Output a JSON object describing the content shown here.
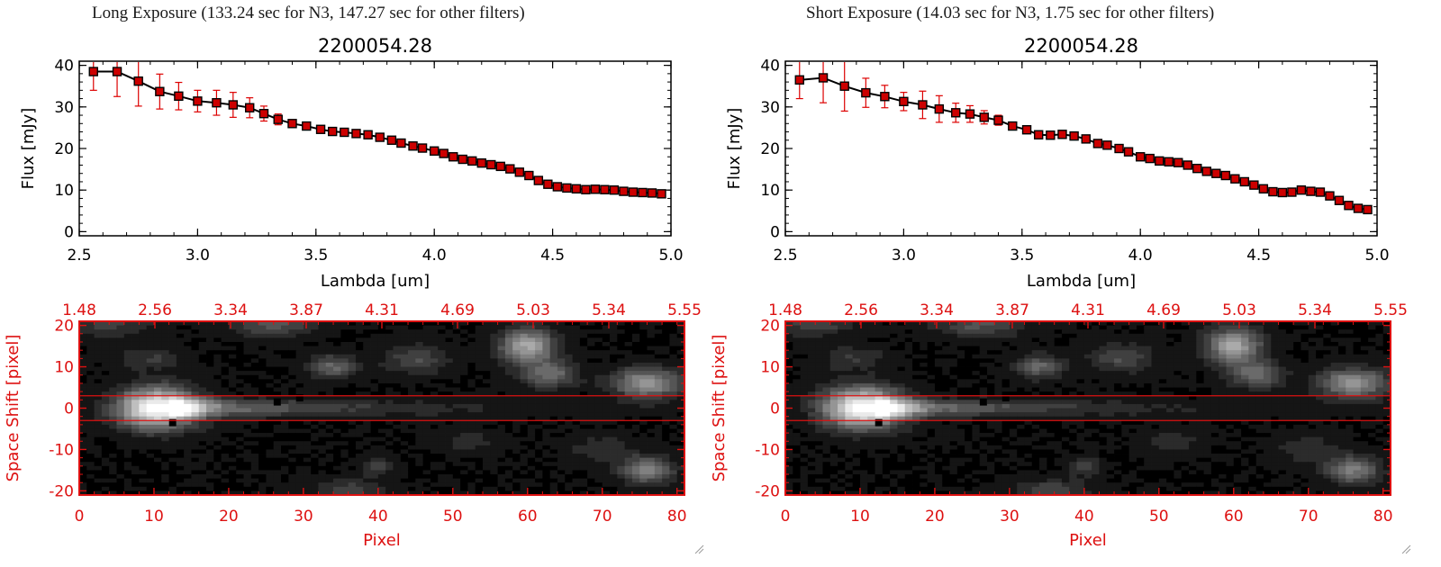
{
  "panels": [
    {
      "caption": "Long Exposure (133.24 sec for N3, 147.27 sec for other filters)"
    },
    {
      "caption": "Short Exposure (14.03 sec for N3, 1.75 sec for other filters)"
    }
  ],
  "chart_data": [
    {
      "type": "scatter",
      "title": "2200054.28",
      "xlabel": "Lambda [um]",
      "ylabel": "Flux [mJy]",
      "xlim": [
        2.5,
        5.0
      ],
      "ylim": [
        -1,
        41
      ],
      "xticks": [
        "2.5",
        "3.0",
        "3.5",
        "4.0",
        "4.5",
        "5.0"
      ],
      "yticks": [
        "0",
        "10",
        "20",
        "30",
        "40"
      ],
      "marker_color": "#cc0000",
      "line_color": "#000000",
      "errorbar_color": "#dd0000",
      "series": [
        {
          "x": [
            2.56,
            2.66,
            2.75,
            2.84,
            2.92,
            3.0,
            3.08,
            3.15,
            3.22,
            3.28,
            3.34,
            3.4,
            3.46,
            3.52,
            3.57,
            3.62,
            3.67,
            3.72,
            3.77,
            3.82,
            3.86,
            3.91,
            3.95,
            4.0,
            4.04,
            4.08,
            4.12,
            4.16,
            4.2,
            4.24,
            4.28,
            4.32,
            4.36,
            4.4,
            4.44,
            4.48,
            4.52,
            4.56,
            4.6,
            4.64,
            4.68,
            4.72,
            4.76,
            4.8,
            4.84,
            4.88,
            4.92,
            4.96
          ],
          "y": [
            38.5,
            38.5,
            36.2,
            33.7,
            32.6,
            31.4,
            31.0,
            30.5,
            29.8,
            28.4,
            27.0,
            26.0,
            25.4,
            24.6,
            24.1,
            23.9,
            23.6,
            23.3,
            22.7,
            22.0,
            21.3,
            20.6,
            20.1,
            19.4,
            18.8,
            18.0,
            17.4,
            17.0,
            16.5,
            16.1,
            15.7,
            15.1,
            14.3,
            13.5,
            12.3,
            11.4,
            10.8,
            10.5,
            10.3,
            10.1,
            10.2,
            10.1,
            10.0,
            9.7,
            9.5,
            9.4,
            9.3,
            9.1
          ],
          "err": [
            4.5,
            6.0,
            6.0,
            4.2,
            3.3,
            2.6,
            3.0,
            3.0,
            2.4,
            1.8,
            1.3,
            0.9,
            0.7,
            0.5,
            0.5,
            0.5,
            0.5,
            0.5,
            0.5,
            0.5,
            0.5,
            0.5,
            0.5,
            0.5,
            0.5,
            0.5,
            0.5,
            0.5,
            0.5,
            0.5,
            0.5,
            0.5,
            0.5,
            0.5,
            0.5,
            0.5,
            0.5,
            0.5,
            0.5,
            0.5,
            0.5,
            0.5,
            0.5,
            0.5,
            0.5,
            0.5,
            0.5,
            0.7
          ]
        }
      ]
    },
    {
      "type": "heatmap",
      "xlabel": "Pixel",
      "ylabel": "Space Shift [pixel]",
      "xlim": [
        0,
        81
      ],
      "ylim": [
        -21,
        21
      ],
      "xticks": [
        "0",
        "10",
        "20",
        "30",
        "40",
        "50",
        "60",
        "70",
        "80"
      ],
      "yticks": [
        "-20",
        "-10",
        "0",
        "10",
        "20"
      ],
      "top_axis_ticks": [
        "1.48",
        "2.56",
        "3.34",
        "3.87",
        "4.31",
        "4.69",
        "5.03",
        "5.34",
        "5.55"
      ],
      "axis_color": "#dd1111",
      "aperture_lines": [
        3,
        -3
      ],
      "blobs": [
        {
          "x": 10.5,
          "y": 0,
          "sx": 3.8,
          "sy": 3.4,
          "v": 1.0
        },
        {
          "x": 60,
          "y": 15,
          "sx": 2.6,
          "sy": 3.0,
          "v": 0.62
        },
        {
          "x": 63,
          "y": 8,
          "sx": 2.5,
          "sy": 2.2,
          "v": 0.38
        },
        {
          "x": 76,
          "y": 6,
          "sx": 3.2,
          "sy": 2.5,
          "v": 0.55
        },
        {
          "x": 76,
          "y": -15,
          "sx": 2.5,
          "sy": 2.3,
          "v": 0.45
        },
        {
          "x": 34,
          "y": 10,
          "sx": 2.3,
          "sy": 2.0,
          "v": 0.35
        },
        {
          "x": 45,
          "y": 12,
          "sx": 3.0,
          "sy": 2.5,
          "v": 0.25
        },
        {
          "x": 26,
          "y": 20,
          "sx": 4.0,
          "sy": 2.0,
          "v": 0.28
        },
        {
          "x": 4,
          "y": 20,
          "sx": 4.0,
          "sy": 2.0,
          "v": 0.2
        },
        {
          "x": 9,
          "y": 12,
          "sx": 3.0,
          "sy": 2.0,
          "v": 0.18
        },
        {
          "x": 36,
          "y": -20,
          "sx": 3.5,
          "sy": 2.0,
          "v": 0.22
        },
        {
          "x": 40,
          "y": -14,
          "sx": 1.5,
          "sy": 1.5,
          "v": 0.22
        },
        {
          "x": 70,
          "y": -10,
          "sx": 3.0,
          "sy": 2.5,
          "v": 0.15
        },
        {
          "x": 52,
          "y": -8,
          "sx": 3.0,
          "sy": 2.0,
          "v": 0.12
        }
      ],
      "dark_pixels": [
        {
          "x": 12.5,
          "y": -3.5
        },
        {
          "x": 26.5,
          "y": 1.5
        },
        {
          "x": 29.5,
          "y": 2.5
        }
      ]
    },
    {
      "type": "scatter",
      "title": "2200054.28",
      "xlabel": "Lambda [um]",
      "ylabel": "Flux [mJy]",
      "xlim": [
        2.5,
        5.0
      ],
      "ylim": [
        -1,
        41
      ],
      "xticks": [
        "2.5",
        "3.0",
        "3.5",
        "4.0",
        "4.5",
        "5.0"
      ],
      "yticks": [
        "0",
        "10",
        "20",
        "30",
        "40"
      ],
      "marker_color": "#cc0000",
      "line_color": "#000000",
      "errorbar_color": "#dd0000",
      "series": [
        {
          "x": [
            2.56,
            2.66,
            2.75,
            2.84,
            2.92,
            3.0,
            3.08,
            3.15,
            3.22,
            3.28,
            3.34,
            3.4,
            3.46,
            3.52,
            3.57,
            3.62,
            3.67,
            3.72,
            3.77,
            3.82,
            3.86,
            3.91,
            3.95,
            4.0,
            4.04,
            4.08,
            4.12,
            4.16,
            4.2,
            4.24,
            4.28,
            4.32,
            4.36,
            4.4,
            4.44,
            4.48,
            4.52,
            4.56,
            4.6,
            4.64,
            4.68,
            4.72,
            4.76,
            4.8,
            4.84,
            4.88,
            4.92,
            4.96
          ],
          "y": [
            36.5,
            37.0,
            35.0,
            33.4,
            32.5,
            31.3,
            30.5,
            29.5,
            28.6,
            28.3,
            27.5,
            26.8,
            25.4,
            24.5,
            23.3,
            23.2,
            23.4,
            23.0,
            22.3,
            21.2,
            20.8,
            20.0,
            19.2,
            18.0,
            17.6,
            17.0,
            16.8,
            16.6,
            16.0,
            15.2,
            14.5,
            14.0,
            13.5,
            12.7,
            12.0,
            11.2,
            10.3,
            9.6,
            9.4,
            9.5,
            10.0,
            9.7,
            9.5,
            8.6,
            7.5,
            6.3,
            5.6,
            5.3
          ],
          "err": [
            4.5,
            6.0,
            6.0,
            3.5,
            2.7,
            2.2,
            3.3,
            3.2,
            2.3,
            2.0,
            1.6,
            1.2,
            0.8,
            0.5,
            0.5,
            0.5,
            0.5,
            0.5,
            0.5,
            0.5,
            0.5,
            0.5,
            0.5,
            0.5,
            0.5,
            0.5,
            0.5,
            0.5,
            0.5,
            0.5,
            0.5,
            0.5,
            0.5,
            0.5,
            0.5,
            0.5,
            0.5,
            0.5,
            0.5,
            0.5,
            0.5,
            0.5,
            0.5,
            0.5,
            0.5,
            0.5,
            0.6,
            0.7
          ]
        }
      ]
    },
    {
      "type": "heatmap",
      "xlabel": "Pixel",
      "ylabel": "Space Shift [pixel]",
      "xlim": [
        0,
        81
      ],
      "ylim": [
        -21,
        21
      ],
      "xticks": [
        "0",
        "10",
        "20",
        "30",
        "40",
        "50",
        "60",
        "70",
        "80"
      ],
      "yticks": [
        "-20",
        "-10",
        "0",
        "10",
        "20"
      ],
      "top_axis_ticks": [
        "1.48",
        "2.56",
        "3.34",
        "3.87",
        "4.31",
        "4.69",
        "5.03",
        "5.34",
        "5.55"
      ],
      "axis_color": "#dd1111",
      "aperture_lines": [
        3,
        -3
      ],
      "blobs": [
        {
          "x": 10.5,
          "y": 0,
          "sx": 3.8,
          "sy": 3.4,
          "v": 1.0
        },
        {
          "x": 60,
          "y": 15,
          "sx": 2.6,
          "sy": 3.0,
          "v": 0.62
        },
        {
          "x": 63,
          "y": 8,
          "sx": 2.5,
          "sy": 2.2,
          "v": 0.38
        },
        {
          "x": 76,
          "y": 6,
          "sx": 3.2,
          "sy": 2.5,
          "v": 0.55
        },
        {
          "x": 76,
          "y": -15,
          "sx": 2.5,
          "sy": 2.3,
          "v": 0.45
        },
        {
          "x": 34,
          "y": 10,
          "sx": 2.3,
          "sy": 2.0,
          "v": 0.35
        },
        {
          "x": 45,
          "y": 12,
          "sx": 3.0,
          "sy": 2.5,
          "v": 0.25
        },
        {
          "x": 26,
          "y": 20,
          "sx": 4.0,
          "sy": 2.0,
          "v": 0.28
        },
        {
          "x": 4,
          "y": 20,
          "sx": 4.0,
          "sy": 2.0,
          "v": 0.2
        },
        {
          "x": 9,
          "y": 12,
          "sx": 3.0,
          "sy": 2.0,
          "v": 0.18
        },
        {
          "x": 36,
          "y": -20,
          "sx": 3.5,
          "sy": 2.0,
          "v": 0.22
        },
        {
          "x": 40,
          "y": -14,
          "sx": 1.5,
          "sy": 1.5,
          "v": 0.22
        },
        {
          "x": 70,
          "y": -10,
          "sx": 3.0,
          "sy": 2.5,
          "v": 0.15
        },
        {
          "x": 52,
          "y": -8,
          "sx": 3.0,
          "sy": 2.0,
          "v": 0.12
        }
      ],
      "dark_pixels": [
        {
          "x": 12.5,
          "y": -3.5
        },
        {
          "x": 26.5,
          "y": 1.5
        },
        {
          "x": 29.5,
          "y": 2.5
        }
      ]
    }
  ]
}
